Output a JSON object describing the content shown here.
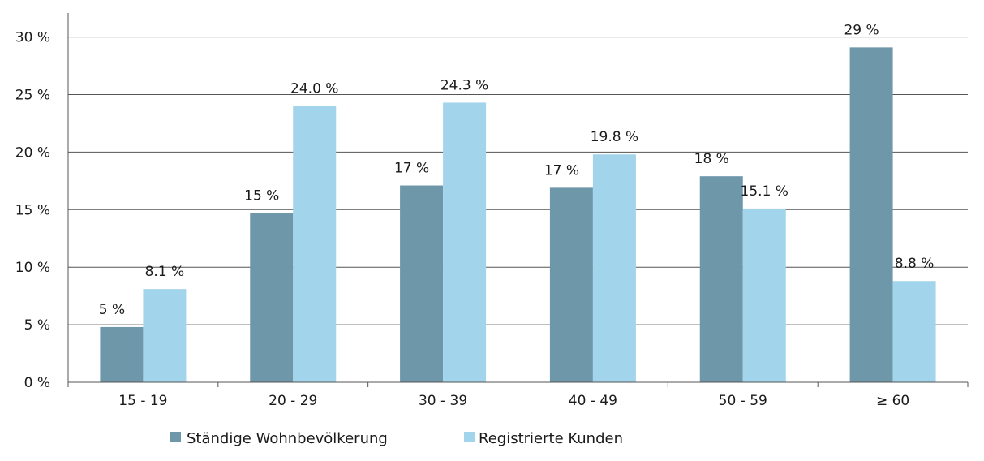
{
  "chart_data": {
    "type": "bar",
    "categories": [
      "15 - 19",
      "20 - 29",
      "30 - 39",
      "40 - 49",
      "50 - 59",
      "≥ 60"
    ],
    "series": [
      {
        "name": "Ständige Wohnbevölkerung",
        "color": "#6f97aa",
        "values": [
          4.8,
          14.7,
          17.1,
          16.9,
          17.9,
          29.1
        ],
        "labels": [
          "5 %",
          "15 %",
          "17 %",
          "17 %",
          "18 %",
          "29 %"
        ]
      },
      {
        "name": "Registrierte Kunden",
        "color": "#a2d4ec",
        "values": [
          8.1,
          24.0,
          24.3,
          19.8,
          15.1,
          8.8
        ],
        "labels": [
          "8.1 %",
          "24.0 %",
          "24.3 %",
          "19.8 %",
          "15.1 %",
          "8.8 %"
        ]
      }
    ],
    "yticks": [
      0,
      5,
      10,
      15,
      20,
      25,
      30
    ],
    "ytick_labels": [
      "0 %",
      "5 %",
      "10 %",
      "15 %",
      "20 %",
      "25 %",
      "30 %"
    ],
    "ylim": [
      0,
      32
    ],
    "grid": true,
    "legend_position": "bottom",
    "title": "",
    "xlabel": "",
    "ylabel": ""
  }
}
